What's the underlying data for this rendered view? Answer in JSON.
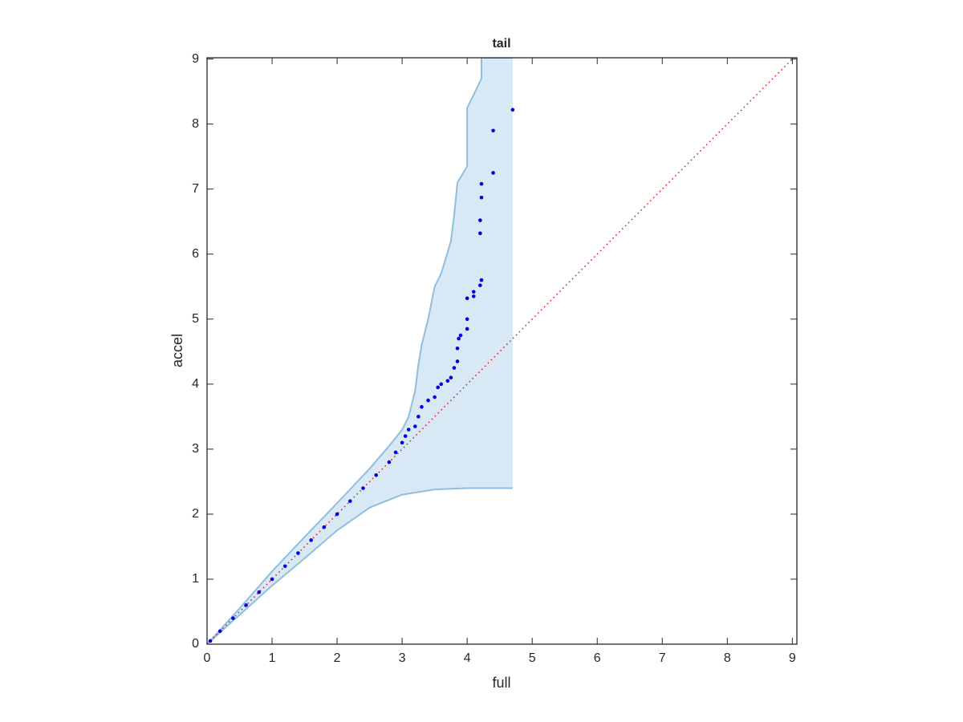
{
  "chart_data": {
    "type": "scatter",
    "title": "tail",
    "xlabel": "full",
    "ylabel": "accel",
    "xlim": [
      0,
      9.07
    ],
    "ylim": [
      0,
      9.02
    ],
    "xticks": [
      0,
      1,
      2,
      3,
      4,
      5,
      6,
      7,
      8,
      9
    ],
    "yticks": [
      0,
      1,
      2,
      3,
      4,
      5,
      6,
      7,
      8,
      9
    ],
    "band": {
      "color": "#d8e8f4",
      "edge_color": "#8fbfdf",
      "upper": {
        "x": [
          0,
          0.5,
          1,
          1.5,
          2,
          2.5,
          2.8,
          3.0,
          3.1,
          3.2,
          3.25,
          3.3,
          3.4,
          3.5,
          3.6,
          3.75,
          3.8,
          3.85,
          4.0,
          4.0,
          4.1,
          4.22,
          4.22,
          4.7
        ],
        "y": [
          0,
          0.55,
          1.12,
          1.65,
          2.17,
          2.7,
          3.05,
          3.3,
          3.5,
          3.9,
          4.3,
          4.6,
          5.0,
          5.5,
          5.7,
          6.2,
          6.6,
          7.1,
          7.35,
          8.25,
          8.45,
          8.7,
          9.02,
          9.02
        ]
      },
      "lower": {
        "x": [
          0,
          0.5,
          1,
          1.5,
          2,
          2.5,
          3.0,
          3.5,
          4.0,
          4.7
        ],
        "y": [
          0,
          0.45,
          0.9,
          1.32,
          1.75,
          2.1,
          2.3,
          2.38,
          2.4,
          2.4
        ]
      }
    },
    "reference": {
      "color": "#e02020",
      "x": [
        0,
        9.05
      ],
      "y": [
        0,
        9.05
      ]
    },
    "series": [
      {
        "color": "#0000e0",
        "x": [
          0.05,
          0.2,
          0.4,
          0.6,
          0.8,
          1.0,
          1.2,
          1.4,
          1.6,
          1.8,
          2.0,
          2.2,
          2.4,
          2.6,
          2.8,
          2.9,
          3.0,
          3.05,
          3.1,
          3.2,
          3.25,
          3.3,
          3.4,
          3.5,
          3.55,
          3.6,
          3.7,
          3.75,
          3.8,
          3.85,
          3.85,
          3.87,
          3.9,
          4.0,
          4.0,
          4.0,
          4.1,
          4.1,
          4.2,
          4.22,
          4.2,
          4.2,
          4.22,
          4.22,
          4.4,
          4.4,
          4.7
        ],
        "values": [
          0.05,
          0.2,
          0.4,
          0.6,
          0.8,
          1.0,
          1.2,
          1.4,
          1.6,
          1.8,
          2.0,
          2.2,
          2.4,
          2.6,
          2.8,
          2.95,
          3.1,
          3.2,
          3.3,
          3.35,
          3.5,
          3.65,
          3.75,
          3.8,
          3.95,
          4.0,
          4.05,
          4.1,
          4.25,
          4.35,
          4.55,
          4.7,
          4.75,
          4.85,
          5.0,
          5.32,
          5.35,
          5.42,
          5.52,
          5.6,
          6.32,
          6.52,
          6.87,
          7.08,
          7.25,
          7.9,
          8.22
        ]
      }
    ]
  }
}
